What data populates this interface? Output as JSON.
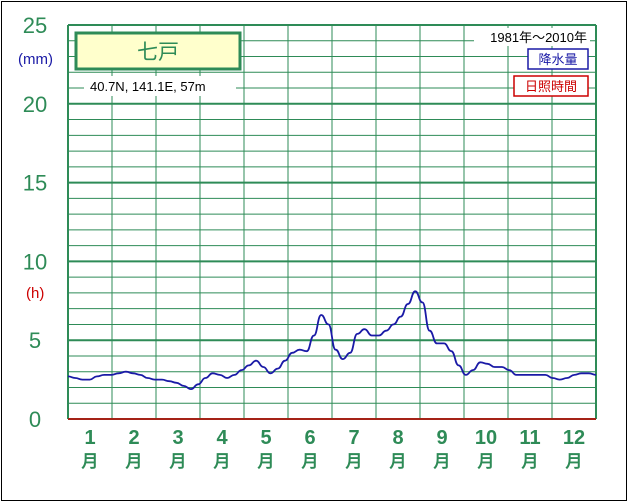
{
  "chart_data": {
    "type": "line",
    "title": "七戸",
    "location": "40.7N,  141.1E,  57m",
    "period": "1981年〜2010年",
    "legend": [
      {
        "label": "降水量",
        "color": "#1a1aa6"
      },
      {
        "label": "日照時間",
        "color": "#cc0000"
      }
    ],
    "units": {
      "left": "(mm)",
      "right": "(h)"
    },
    "yticks": [
      "0",
      "5",
      "10",
      "15",
      "20",
      "25"
    ],
    "ylim": [
      0,
      25
    ],
    "grid": true,
    "categories": [
      {
        "num": "1",
        "kanji": "月"
      },
      {
        "num": "2",
        "kanji": "月"
      },
      {
        "num": "3",
        "kanji": "月"
      },
      {
        "num": "4",
        "kanji": "月"
      },
      {
        "num": "5",
        "kanji": "月"
      },
      {
        "num": "6",
        "kanji": "月"
      },
      {
        "num": "7",
        "kanji": "月"
      },
      {
        "num": "8",
        "kanji": "月"
      },
      {
        "num": "9",
        "kanji": "月"
      },
      {
        "num": "10",
        "kanji": "月"
      },
      {
        "num": "11",
        "kanji": "月"
      },
      {
        "num": "12",
        "kanji": "月"
      }
    ],
    "series": [
      {
        "name": "降水量",
        "color": "#1a1aa6",
        "x": [
          0,
          5,
          10,
          15,
          20,
          25,
          30,
          35,
          40,
          45,
          50,
          55,
          60,
          65,
          70,
          75,
          80,
          85,
          90,
          95,
          100,
          105,
          110,
          115,
          120,
          125,
          130,
          135,
          140,
          145,
          150,
          155,
          160,
          165,
          170,
          175,
          180,
          185,
          190,
          195,
          200,
          205,
          210,
          215,
          220,
          225,
          230,
          235,
          240,
          245,
          250,
          255,
          260,
          265,
          270,
          275,
          280,
          285,
          290,
          295,
          300,
          305,
          310,
          315,
          320,
          325,
          330,
          335,
          340,
          345,
          350,
          355,
          360,
          365
        ],
        "values": [
          2.7,
          2.6,
          2.5,
          2.5,
          2.7,
          2.8,
          2.8,
          2.9,
          3.0,
          2.9,
          2.8,
          2.6,
          2.5,
          2.5,
          2.4,
          2.3,
          2.1,
          1.9,
          2.2,
          2.6,
          2.9,
          2.8,
          2.6,
          2.8,
          3.1,
          3.4,
          3.7,
          3.3,
          2.9,
          3.2,
          3.7,
          4.2,
          4.4,
          4.3,
          5.3,
          6.6,
          6.0,
          4.4,
          3.8,
          4.2,
          5.4,
          5.7,
          5.3,
          5.3,
          5.6,
          6.0,
          6.5,
          7.3,
          8.1,
          7.4,
          5.6,
          4.8,
          4.8,
          4.3,
          3.4,
          2.8,
          3.1,
          3.6,
          3.5,
          3.3,
          3.3,
          3.1,
          2.8,
          2.8,
          2.8,
          2.8,
          2.8,
          2.6,
          2.5,
          2.6,
          2.8,
          2.9,
          2.9,
          2.8
        ]
      }
    ]
  }
}
